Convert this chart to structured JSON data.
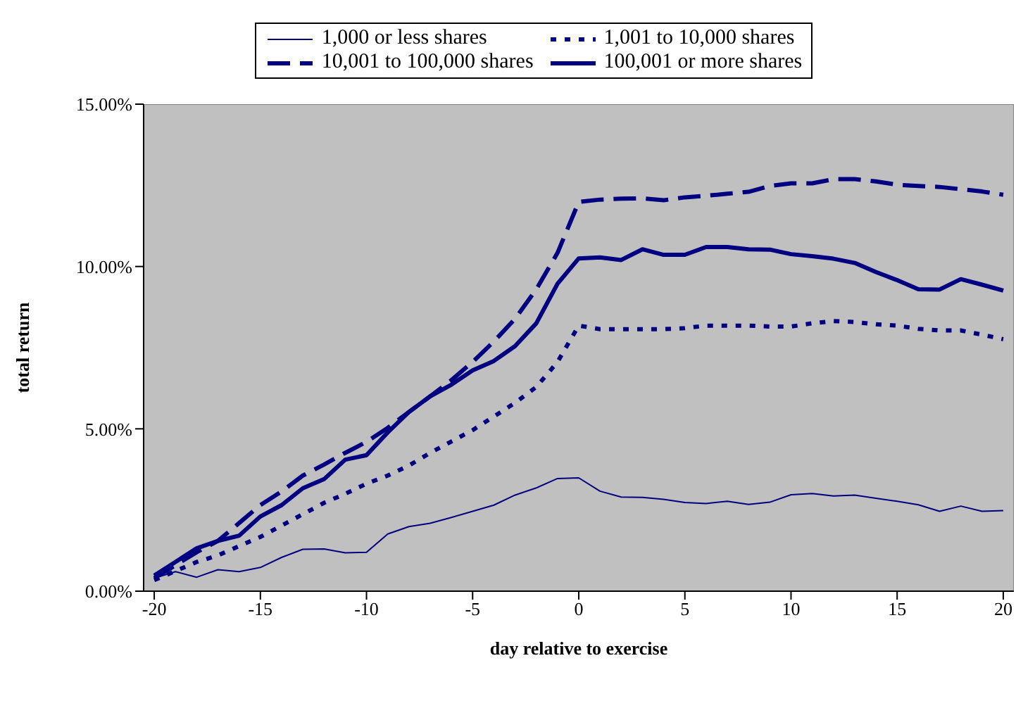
{
  "chart_data": {
    "type": "line",
    "xlabel": "day relative to exercise",
    "ylabel": "total return",
    "x": [
      -20,
      -19,
      -18,
      -17,
      -16,
      -15,
      -14,
      -13,
      -12,
      -11,
      -10,
      -9,
      -8,
      -7,
      -6,
      -5,
      -4,
      -3,
      -2,
      -1,
      0,
      1,
      2,
      3,
      4,
      5,
      6,
      7,
      8,
      9,
      10,
      11,
      12,
      13,
      14,
      15,
      16,
      17,
      18,
      19,
      20
    ],
    "series": [
      {
        "name": "1,000 or less shares",
        "color": "#000080",
        "line_style": "solid",
        "values": [
          0.004,
          0.006,
          0.0043,
          0.0066,
          0.006,
          0.0073,
          0.0104,
          0.0129,
          0.013,
          0.0118,
          0.012,
          0.0176,
          0.0199,
          0.0209,
          0.0227,
          0.0246,
          0.0265,
          0.0296,
          0.0318,
          0.0347,
          0.0349,
          0.0308,
          0.029,
          0.0289,
          0.0283,
          0.0273,
          0.027,
          0.0277,
          0.0267,
          0.0274,
          0.0297,
          0.0301,
          0.0293,
          0.0296,
          0.0286,
          0.0277,
          0.0266,
          0.0246,
          0.0262,
          0.0246,
          0.0248
        ]
      },
      {
        "name": "1,001 to 10,000 shares",
        "color": "#000080",
        "line_style": "dotted",
        "values": [
          0.0034,
          0.0062,
          0.009,
          0.011,
          0.0139,
          0.0167,
          0.0202,
          0.0237,
          0.0272,
          0.03,
          0.0331,
          0.0356,
          0.0387,
          0.0426,
          0.0461,
          0.0496,
          0.0538,
          0.058,
          0.0629,
          0.0706,
          0.0818,
          0.0807,
          0.0807,
          0.0807,
          0.0807,
          0.081,
          0.0818,
          0.0818,
          0.0818,
          0.0815,
          0.0815,
          0.0825,
          0.0832,
          0.0829,
          0.0822,
          0.0818,
          0.0808,
          0.0803,
          0.0803,
          0.079,
          0.0776
        ]
      },
      {
        "name": "10,001 to 100,000 shares",
        "color": "#000080",
        "line_style": "dashed",
        "values": [
          0.004,
          0.008,
          0.012,
          0.0155,
          0.021,
          0.0265,
          0.0307,
          0.0356,
          0.039,
          0.0426,
          0.046,
          0.0503,
          0.0552,
          0.06,
          0.065,
          0.0706,
          0.0769,
          0.0839,
          0.093,
          0.1042,
          0.1199,
          0.1206,
          0.1209,
          0.121,
          0.1204,
          0.1213,
          0.1218,
          0.1224,
          0.123,
          0.1248,
          0.1256,
          0.1256,
          0.1269,
          0.1269,
          0.1262,
          0.1252,
          0.1248,
          0.1245,
          0.1238,
          0.1231,
          0.1221
        ]
      },
      {
        "name": "100,001 or more shares",
        "color": "#000080",
        "line_style": "solid",
        "values": [
          0.0048,
          0.009,
          0.0132,
          0.0155,
          0.0171,
          0.023,
          0.0265,
          0.0317,
          0.0345,
          0.0405,
          0.0419,
          0.0489,
          0.0552,
          0.06,
          0.0636,
          0.068,
          0.0709,
          0.0755,
          0.0825,
          0.0947,
          0.1025,
          0.1028,
          0.102,
          0.1053,
          0.1036,
          0.1036,
          0.106,
          0.106,
          0.1053,
          0.1052,
          0.1038,
          0.1032,
          0.1024,
          0.1011,
          0.0983,
          0.0958,
          0.093,
          0.0929,
          0.0961,
          0.0944,
          0.0926
        ]
      }
    ],
    "xlim": [
      -20.5,
      20.5
    ],
    "xticks": [
      -20,
      -15,
      -10,
      -5,
      0,
      5,
      10,
      15,
      20
    ],
    "ylim": [
      0,
      0.15
    ],
    "yticks": [
      {
        "value": 0,
        "label": "0.00%"
      },
      {
        "value": 0.05,
        "label": "5.00%"
      },
      {
        "value": 0.1,
        "label": "10.00%"
      },
      {
        "value": 0.15,
        "label": "15.00%"
      }
    ],
    "grid": false,
    "legend": "top",
    "marker": "none"
  }
}
